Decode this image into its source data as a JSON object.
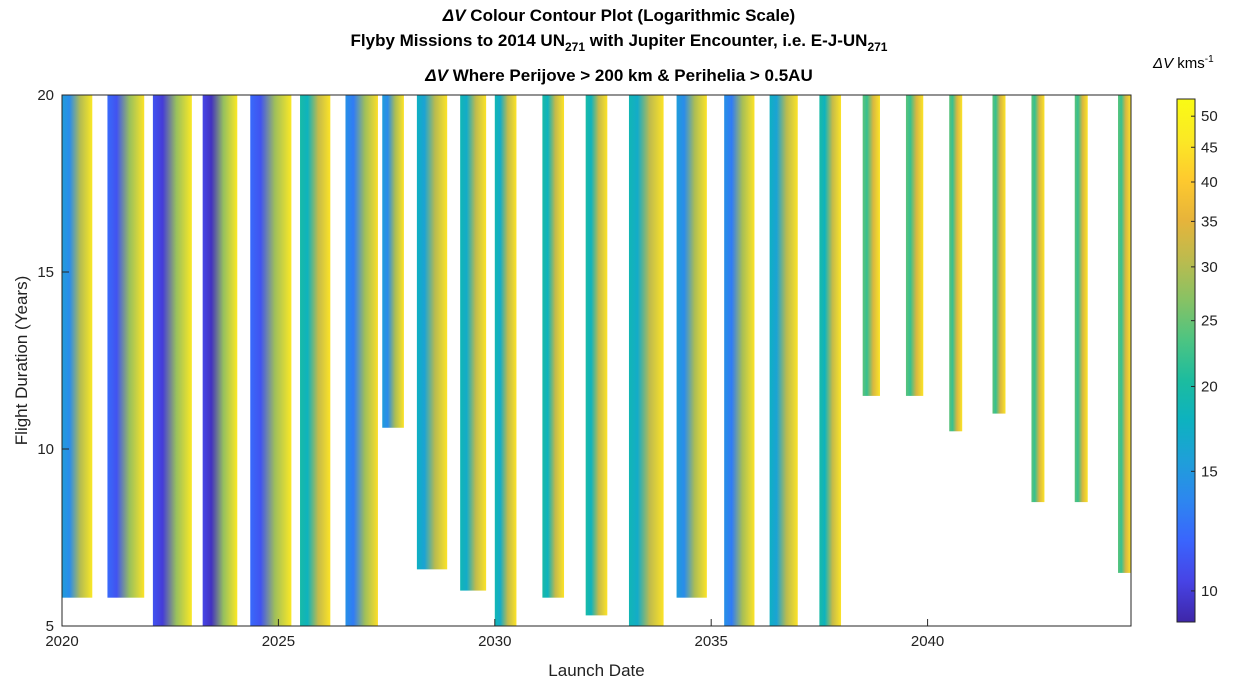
{
  "titles": {
    "line1_symbol": "ΔV",
    "line1_text": " Colour Contour Plot (Logarithmic Scale)",
    "line2_pre": "Flyby Missions to 2014 UN",
    "line2_sub": "271",
    "line2_mid": " with Jupiter Encounter, i.e. E-J-UN",
    "line2_sub2": "271",
    "line3_symbol": "ΔV",
    "line3_text": " Where Perijove > 200 km & Perihelia > 0.5AU"
  },
  "colorbar": {
    "symbol": "ΔV",
    "unit": " kms",
    "unit_exp": "-1",
    "ticks": [
      10,
      15,
      20,
      25,
      30,
      35,
      40,
      45,
      50
    ],
    "range": [
      9,
      53
    ],
    "colors": [
      "#3e26a8",
      "#4743e5",
      "#3a64fd",
      "#2d86f0",
      "#1f9fd9",
      "#0db2c0",
      "#1cbc9f",
      "#4cc482",
      "#87c264",
      "#bcbb4e",
      "#e7b43a",
      "#feca2e",
      "#fbe925",
      "#f9fb14"
    ]
  },
  "chart_data": {
    "type": "heatmap",
    "xlabel": "Launch Date",
    "ylabel": "Flight Duration (Years)",
    "xlim": [
      2020,
      2044.7
    ],
    "ylim": [
      5,
      20
    ],
    "xticks": [
      2020,
      2025,
      2030,
      2035,
      2040
    ],
    "yticks": [
      5,
      10,
      15,
      20
    ],
    "scale": "logarithmic",
    "bands": [
      {
        "x0": 2020.0,
        "x1": 2020.7,
        "ymin": 5.8,
        "vmin": 14,
        "vmax": 46
      },
      {
        "x0": 2021.05,
        "x1": 2021.9,
        "ymin": 5.8,
        "vmin": 11,
        "vmax": 45
      },
      {
        "x0": 2022.1,
        "x1": 2023.0,
        "ymin": 5.0,
        "vmin": 10,
        "vmax": 46
      },
      {
        "x0": 2023.25,
        "x1": 2024.05,
        "ymin": 5.0,
        "vmin": 9.5,
        "vmax": 46
      },
      {
        "x0": 2024.35,
        "x1": 2025.3,
        "ymin": 5.0,
        "vmin": 11,
        "vmax": 46
      },
      {
        "x0": 2025.5,
        "x1": 2026.2,
        "ymin": 5.0,
        "vmin": 18,
        "vmax": 45
      },
      {
        "x0": 2026.55,
        "x1": 2027.3,
        "ymin": 5.0,
        "vmin": 13,
        "vmax": 44
      },
      {
        "x0": 2027.4,
        "x1": 2027.9,
        "ymin": 10.6,
        "vmin": 14,
        "vmax": 45
      },
      {
        "x0": 2028.2,
        "x1": 2028.9,
        "ymin": 6.6,
        "vmin": 16,
        "vmax": 45
      },
      {
        "x0": 2029.2,
        "x1": 2029.8,
        "ymin": 6.0,
        "vmin": 17,
        "vmax": 45
      },
      {
        "x0": 2030.0,
        "x1": 2030.5,
        "ymin": 5.0,
        "vmin": 17,
        "vmax": 45
      },
      {
        "x0": 2031.1,
        "x1": 2031.6,
        "ymin": 5.8,
        "vmin": 18,
        "vmax": 45
      },
      {
        "x0": 2032.1,
        "x1": 2032.6,
        "ymin": 5.3,
        "vmin": 18,
        "vmax": 45
      },
      {
        "x0": 2033.1,
        "x1": 2033.9,
        "ymin": 5.0,
        "vmin": 17,
        "vmax": 45
      },
      {
        "x0": 2034.2,
        "x1": 2034.9,
        "ymin": 5.8,
        "vmin": 14,
        "vmax": 45
      },
      {
        "x0": 2035.3,
        "x1": 2036.0,
        "ymin": 5.0,
        "vmin": 13,
        "vmax": 45
      },
      {
        "x0": 2036.35,
        "x1": 2037.0,
        "ymin": 5.0,
        "vmin": 16,
        "vmax": 45
      },
      {
        "x0": 2037.5,
        "x1": 2038.0,
        "ymin": 5.0,
        "vmin": 18,
        "vmax": 45
      },
      {
        "x0": 2038.5,
        "x1": 2038.9,
        "ymin": 11.5,
        "vmin": 22,
        "vmax": 45
      },
      {
        "x0": 2039.5,
        "x1": 2039.9,
        "ymin": 11.5,
        "vmin": 22,
        "vmax": 45
      },
      {
        "x0": 2040.5,
        "x1": 2040.8,
        "ymin": 10.5,
        "vmin": 22,
        "vmax": 45
      },
      {
        "x0": 2041.5,
        "x1": 2041.8,
        "ymin": 11.0,
        "vmin": 22,
        "vmax": 45
      },
      {
        "x0": 2042.4,
        "x1": 2042.7,
        "ymin": 8.5,
        "vmin": 22,
        "vmax": 45
      },
      {
        "x0": 2043.4,
        "x1": 2043.7,
        "ymin": 8.5,
        "vmin": 22,
        "vmax": 45
      },
      {
        "x0": 2044.4,
        "x1": 2044.7,
        "ymin": 6.5,
        "vmin": 22,
        "vmax": 45
      }
    ]
  }
}
